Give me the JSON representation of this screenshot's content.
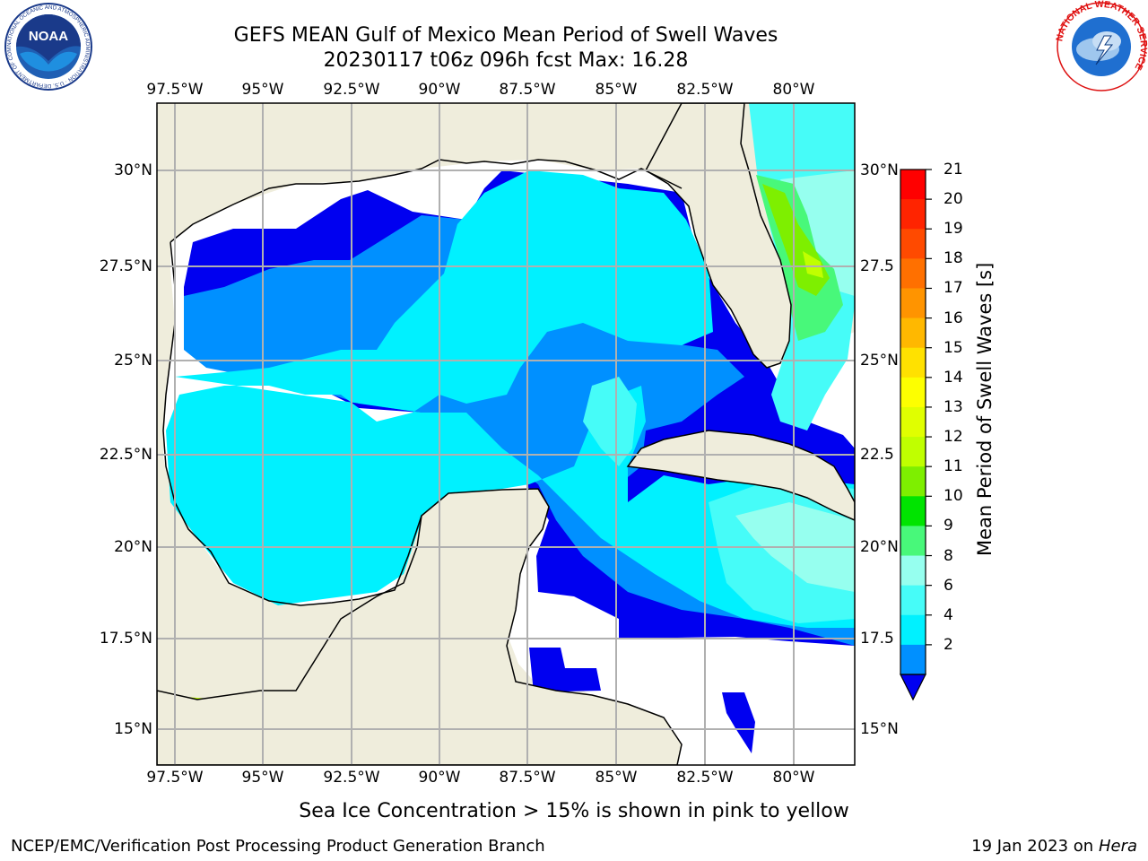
{
  "header": {
    "title_line1": "GEFS MEAN Gulf of Mexico Mean Period of Swell Waves",
    "title_line2": "20230117 t06z 096h fcst   Max: 16.28"
  },
  "logos": {
    "left": {
      "icon": "noaa-logo-icon",
      "text": "NOAA",
      "ring_text": "NATIONAL OCEANIC AND ATMOSPHERIC ADMINISTRATION · U.S. DEPARTMENT OF COMMERCE"
    },
    "right": {
      "icon": "nws-logo-icon",
      "ring_text": "NATIONAL WEATHER SERVICE"
    }
  },
  "map": {
    "lon_ticks": [
      "97.5°W",
      "95°W",
      "92.5°W",
      "90°W",
      "87.5°W",
      "85°W",
      "82.5°W",
      "80°W"
    ],
    "lat_ticks": [
      "30°N",
      "27.5°N",
      "25°N",
      "22.5°N",
      "20°N",
      "17.5°N",
      "15°N"
    ],
    "lat_ticks_right": [
      "30°N",
      "27.5",
      "25°N",
      "22.5",
      "20°N",
      "17.5",
      "15°N"
    ],
    "extent": {
      "lon_min": -98.0,
      "lon_max": -78.3,
      "lat_min": 14.0,
      "lat_max": 31.8
    },
    "colors": {
      "land": "#efeddc",
      "ocean_missing": "#ffffff",
      "grid": "#b0b0b0",
      "coast": "#000000"
    }
  },
  "colorbar": {
    "title": "Mean Period of Swell Waves [s]",
    "labels": [
      "21",
      "20",
      "19",
      "18",
      "17",
      "16",
      "15",
      "14",
      "13",
      "12",
      "11",
      "10",
      "9",
      "8",
      "6",
      "4",
      "2"
    ],
    "colors": [
      "#ff0000",
      "#ff2400",
      "#ff4a00",
      "#ff7000",
      "#ff9400",
      "#ffb800",
      "#ffe100",
      "#fdff00",
      "#e0ff00",
      "#c0ff00",
      "#7eef00",
      "#00e400",
      "#48f87a",
      "#96ffef",
      "#46fcf8",
      "#00f1ff",
      "#0090ff"
    ],
    "extend_color": "#0000f0"
  },
  "footer": {
    "note": "Sea Ice Concentration > 15% is shown in pink to yellow",
    "left": "NCEP/EMC/Verification Post Processing Product Generation Branch",
    "date": "19 Jan 2023 on ",
    "machine": "Hera"
  }
}
